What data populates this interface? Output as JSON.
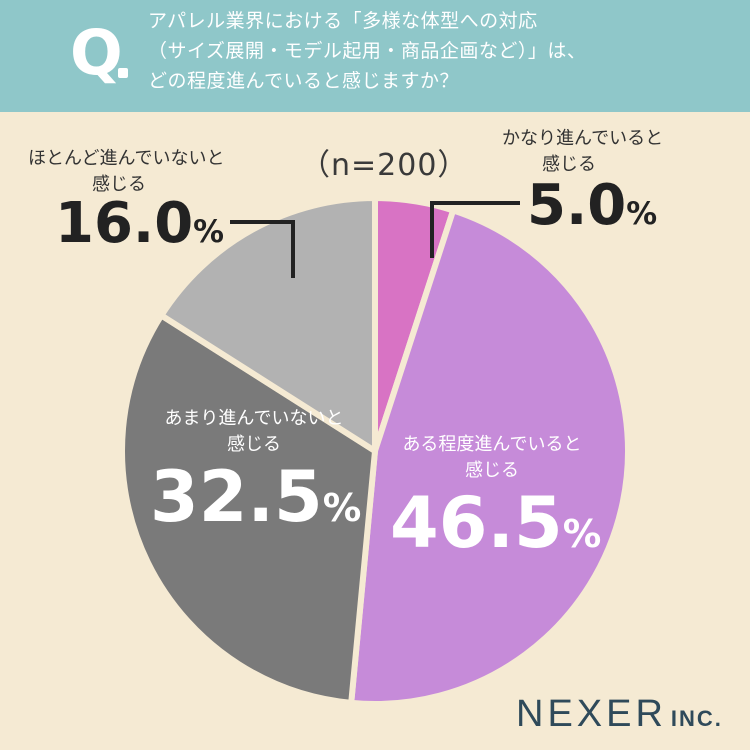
{
  "question": {
    "mark": "Q",
    "lines": [
      "アパレル業界における「多様な体型への対応",
      "（サイズ展開・モデル起用・商品企画など）」は、",
      "どの程度進んでいると感じますか？"
    ]
  },
  "sample_label": "（n=200）",
  "brand": {
    "name": "NEXER",
    "suffix": "INC."
  },
  "colors": {
    "header": "#8fc7c9",
    "background": "#f5ead3",
    "slice_1": "#d873c4",
    "slice_2": "#c68bd9",
    "slice_3": "#7a7a7a",
    "slice_4": "#b2b2b2"
  },
  "chart_data": {
    "type": "pie",
    "start": "12 o'clock",
    "direction": "clockwise",
    "slices": [
      {
        "label_lines": [
          "かなり進んでいると",
          "感じる"
        ],
        "value": 5.0,
        "display": "5.0",
        "unit": "%"
      },
      {
        "label_lines": [
          "ある程度進んでいると",
          "感じる"
        ],
        "value": 46.5,
        "display": "46.5",
        "unit": "%"
      },
      {
        "label_lines": [
          "あまり進んでいないと",
          "感じる"
        ],
        "value": 32.5,
        "display": "32.5",
        "unit": "%"
      },
      {
        "label_lines": [
          "ほとんど進んでいないと",
          "感じる"
        ],
        "value": 16.0,
        "display": "16.0",
        "unit": "%"
      }
    ]
  }
}
